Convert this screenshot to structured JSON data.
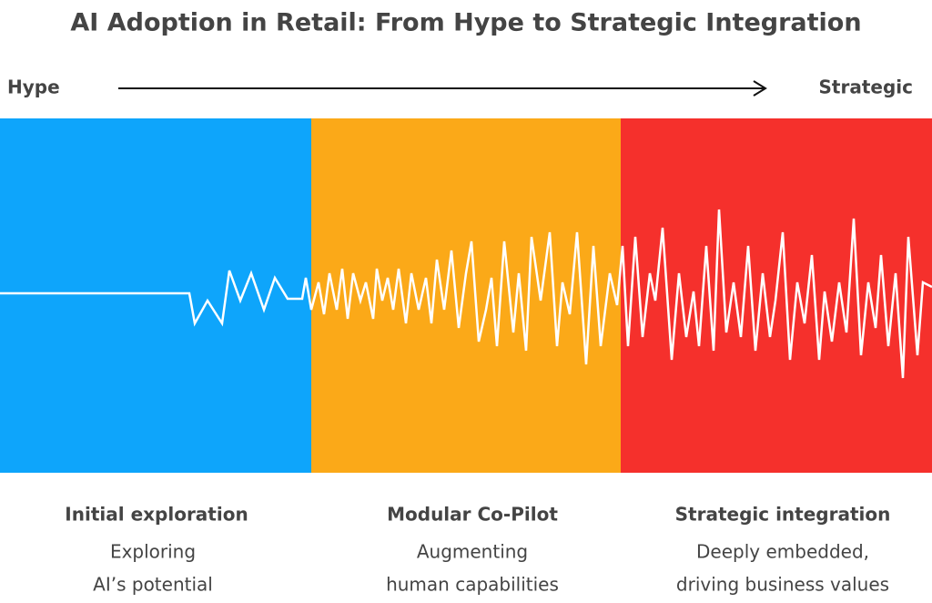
{
  "header": {
    "title": "AI Adoption in Retail: From Hype to Strategic Integration"
  },
  "axis": {
    "start": "Hype",
    "end": "Strategic"
  },
  "stages": [
    {
      "title": "Initial exploration",
      "lines": [
        "Exploring",
        "AI’s potential"
      ]
    },
    {
      "title": "Modular Co-Pilot",
      "lines": [
        "Augmenting",
        "human capabilities"
      ]
    },
    {
      "title": "Strategic integration",
      "lines": [
        "Deeply embedded,",
        "driving business values"
      ]
    }
  ]
}
